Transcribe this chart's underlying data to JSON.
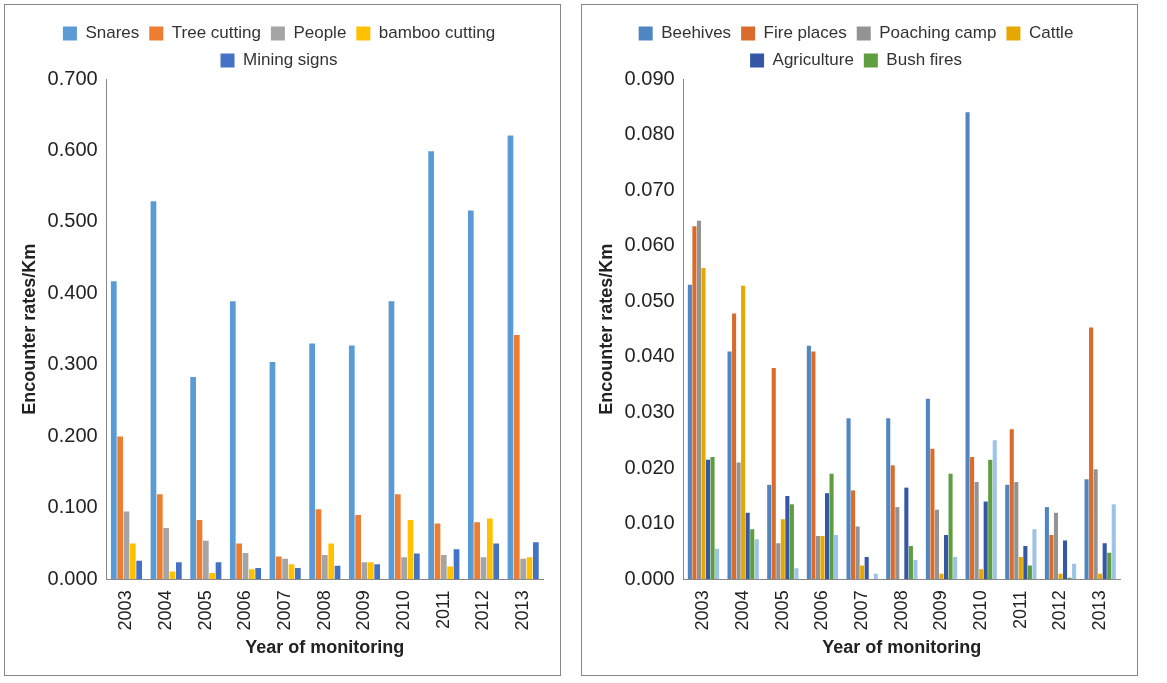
{
  "chart_data": [
    {
      "type": "bar",
      "xlabel": "Year of monitoring",
      "ylabel": "Encounter rates/Km",
      "categories": [
        "2003",
        "2004",
        "2005",
        "2006",
        "2007",
        "2008",
        "2009",
        "2010",
        "2011",
        "2012",
        "2013"
      ],
      "series": [
        {
          "name": "Snares",
          "color": "#5b9bd5",
          "values": [
            0.417,
            0.529,
            0.283,
            0.389,
            0.304,
            0.33,
            0.327,
            0.389,
            0.599,
            0.516,
            0.621
          ]
        },
        {
          "name": "Tree cutting",
          "color": "#ed7d31",
          "values": [
            0.2,
            0.119,
            0.083,
            0.05,
            0.032,
            0.098,
            0.09,
            0.119,
            0.078,
            0.08,
            0.342
          ]
        },
        {
          "name": "People",
          "color": "#a5a5a5",
          "values": [
            0.095,
            0.072,
            0.054,
            0.037,
            0.029,
            0.034,
            0.024,
            0.031,
            0.034,
            0.031,
            0.029
          ]
        },
        {
          "name": "bamboo cutting",
          "color": "#ffc000",
          "values": [
            0.05,
            0.011,
            0.009,
            0.014,
            0.021,
            0.05,
            0.024,
            0.083,
            0.018,
            0.085,
            0.031
          ]
        },
        {
          "name": "Mining signs",
          "color": "#4472c4",
          "values": [
            0.026,
            0.024,
            0.024,
            0.016,
            0.016,
            0.019,
            0.021,
            0.036,
            0.042,
            0.05,
            0.052
          ]
        }
      ],
      "ylim": [
        0,
        0.7
      ],
      "yticks": [
        {
          "value": 0,
          "label": "0.000"
        },
        {
          "value": 0.1,
          "label": "0.100"
        },
        {
          "value": 0.2,
          "label": "0.200"
        },
        {
          "value": 0.3,
          "label": "0.300"
        },
        {
          "value": 0.4,
          "label": "0.400"
        },
        {
          "value": 0.5,
          "label": "0.500"
        },
        {
          "value": 0.6,
          "label": "0.600"
        },
        {
          "value": 0.7,
          "label": "0.700"
        }
      ],
      "grid": false,
      "legend": "top"
    },
    {
      "type": "bar",
      "xlabel": "Year of monitoring",
      "ylabel": "Encounter rates/Km",
      "categories": [
        "2003",
        "2004",
        "2005",
        "2006",
        "2007",
        "2008",
        "2009",
        "2010",
        "2011",
        "2012",
        "2013"
      ],
      "series": [
        {
          "name": "Beehives",
          "color": "#4f86c2",
          "values": [
            0.053,
            0.041,
            0.017,
            0.042,
            0.029,
            0.029,
            0.0325,
            0.084,
            0.017,
            0.013,
            0.018
          ]
        },
        {
          "name": "Fire places",
          "color": "#d96b2b",
          "values": [
            0.0635,
            0.0478,
            0.038,
            0.041,
            0.016,
            0.0205,
            0.0235,
            0.022,
            0.027,
            0.008,
            0.0453
          ]
        },
        {
          "name": "Poaching camp",
          "color": "#939393",
          "values": [
            0.0645,
            0.021,
            0.0065,
            0.0078,
            0.0095,
            0.013,
            0.0125,
            0.0175,
            0.0175,
            0.012,
            0.0198
          ]
        },
        {
          "name": "Cattle",
          "color": "#e6a800",
          "values": [
            0.056,
            0.0528,
            0.0108,
            0.0078,
            0.0025,
            0,
            0.001,
            0.0018,
            0.004,
            0.001,
            0.001
          ]
        },
        {
          "name": "Agriculture",
          "color": "#3557a6",
          "values": [
            0.0215,
            0.012,
            0.015,
            0.0155,
            0.004,
            0.0165,
            0.008,
            0.014,
            0.006,
            0.007,
            0.0065
          ]
        },
        {
          "name": "Bush fires",
          "color": "#5e9e3e",
          "values": [
            0.022,
            0.009,
            0.0135,
            0.019,
            0,
            0.006,
            0.019,
            0.0215,
            0.0025,
            0.0003,
            0.0048
          ]
        },
        {
          "color": "#9dc3e6",
          "values": [
            0.0055,
            0.0072,
            0.002,
            0.008,
            0.001,
            0.0035,
            0.004,
            0.025,
            0.009,
            0.0028,
            0.0135
          ]
        }
      ],
      "ylim": [
        0,
        0.09
      ],
      "yticks": [
        {
          "value": 0,
          "label": "0.000"
        },
        {
          "value": 0.01,
          "label": "0.010"
        },
        {
          "value": 0.02,
          "label": "0.020"
        },
        {
          "value": 0.03,
          "label": "0.030"
        },
        {
          "value": 0.04,
          "label": "0.040"
        },
        {
          "value": 0.05,
          "label": "0.050"
        },
        {
          "value": 0.06,
          "label": "0.060"
        },
        {
          "value": 0.07,
          "label": "0.070"
        },
        {
          "value": 0.08,
          "label": "0.080"
        },
        {
          "value": 0.09,
          "label": "0.090"
        }
      ],
      "grid": false,
      "legend": "top"
    }
  ]
}
